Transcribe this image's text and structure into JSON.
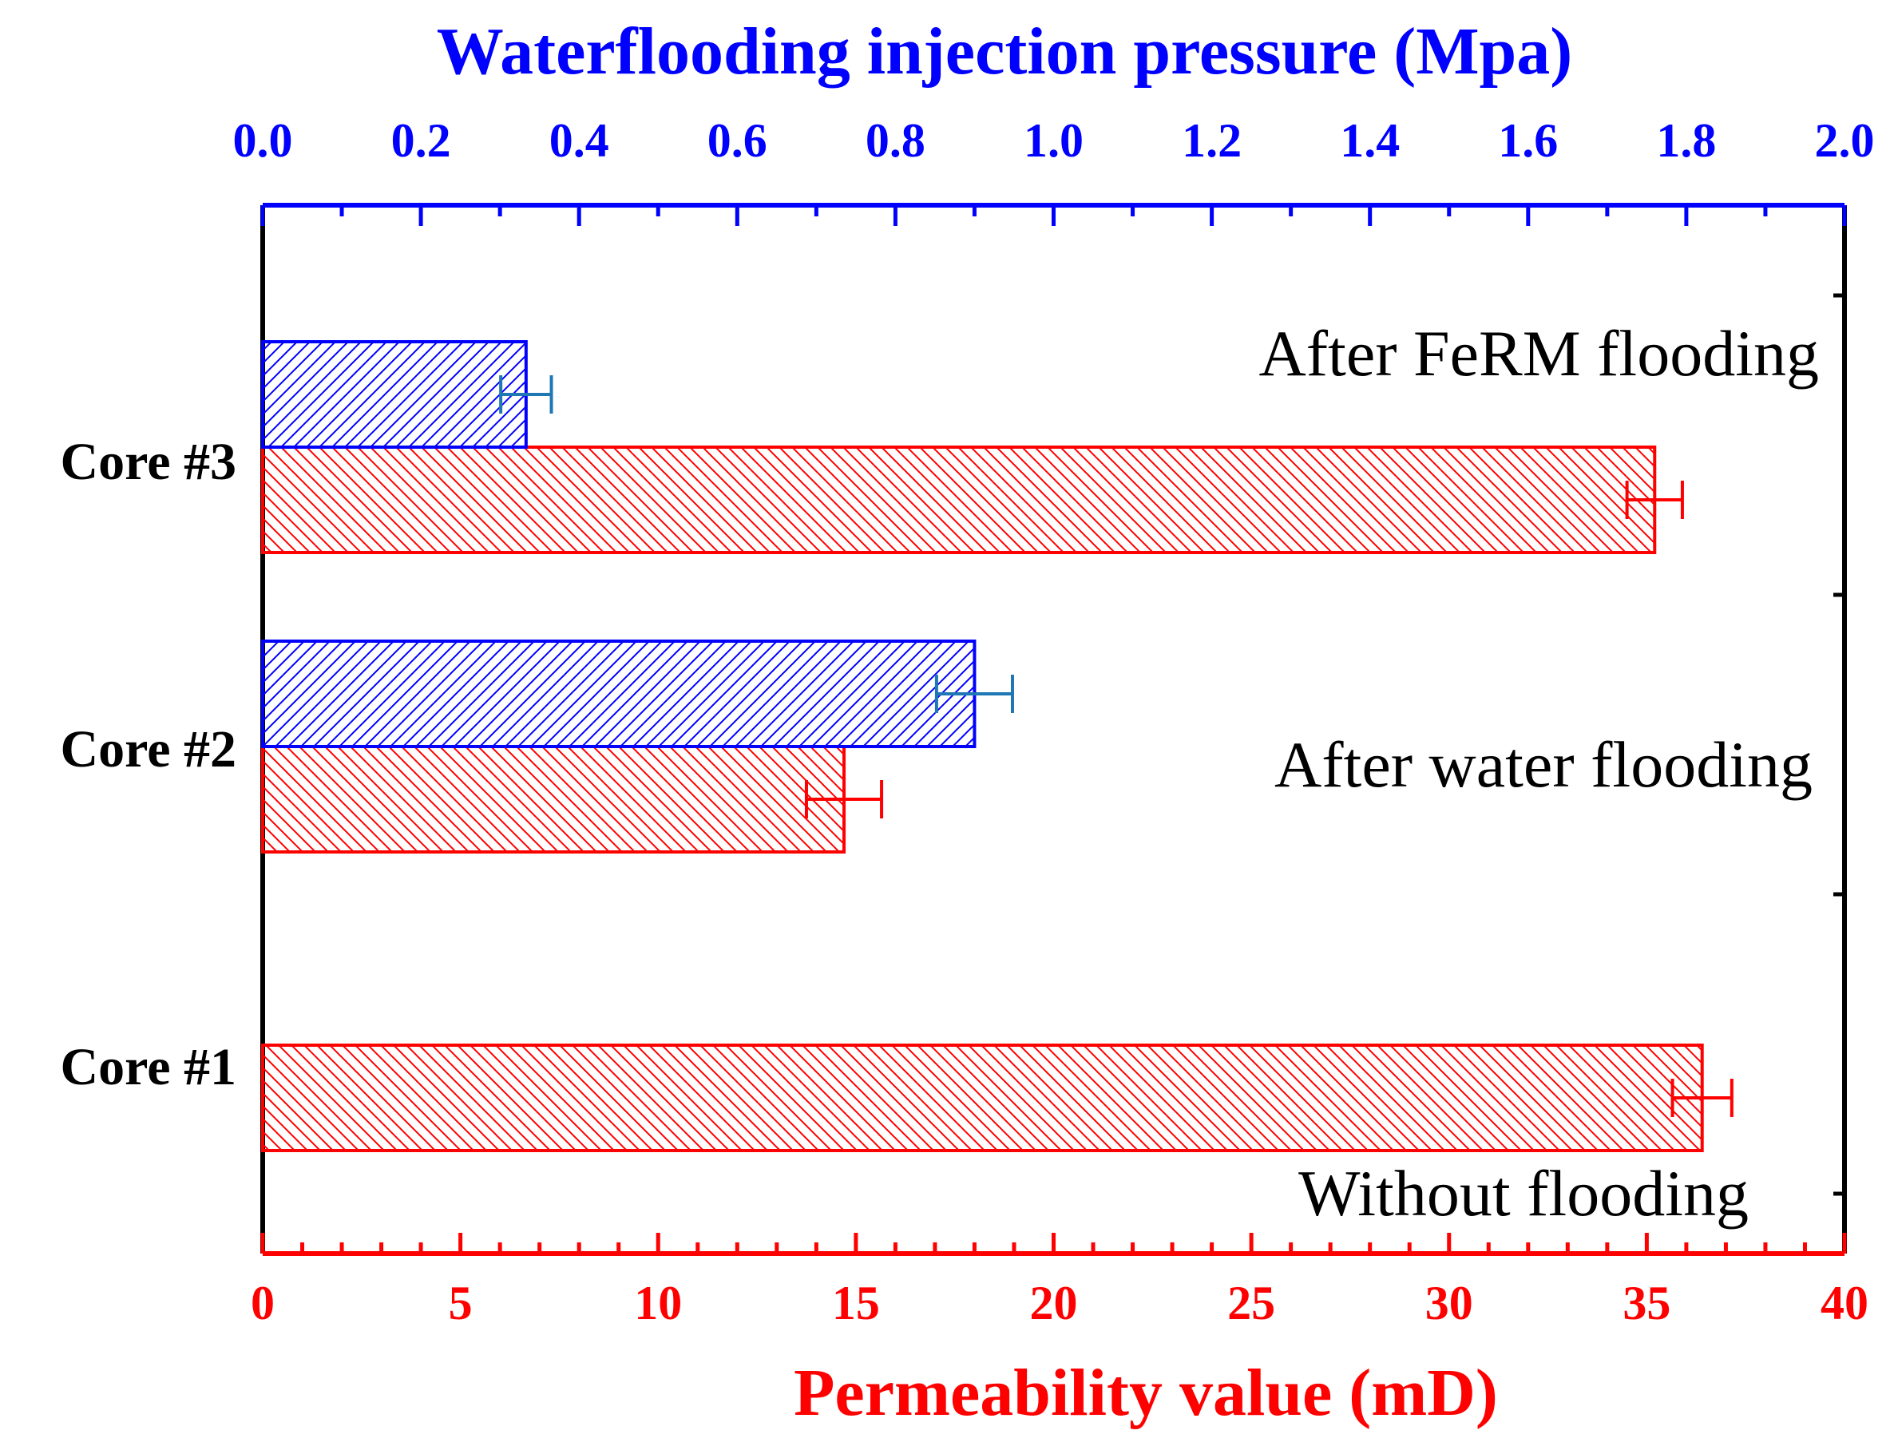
{
  "chart_data": {
    "type": "bar",
    "orientation": "horizontal",
    "categories": [
      "Core #1",
      "Core #2",
      "Core #3"
    ],
    "top_axis": {
      "label": "Waterflooding injection pressure (Mpa)",
      "range": [
        0.0,
        2.0
      ],
      "ticks": [
        "0.0",
        "0.2",
        "0.4",
        "0.6",
        "0.8",
        "1.0",
        "1.2",
        "1.4",
        "1.6",
        "1.8",
        "2.0"
      ],
      "color": "#0000FF"
    },
    "bottom_axis": {
      "label": "Permeability value (mD)",
      "range": [
        0,
        40
      ],
      "ticks": [
        "0",
        "5",
        "10",
        "15",
        "20",
        "25",
        "30",
        "35",
        "40"
      ],
      "color": "#FF0000"
    },
    "series": [
      {
        "axis": "bottom",
        "color": "#FF0000",
        "hatch": "backslash",
        "values": [
          36.4,
          14.7,
          35.2
        ],
        "errors": [
          0.75,
          0.95,
          0.7
        ]
      },
      {
        "axis": "top",
        "color": "#0000FF",
        "error_color": "#1F77B4",
        "hatch": "slash",
        "values": [
          null,
          0.9,
          0.333
        ],
        "errors": [
          null,
          0.048,
          0.032
        ]
      }
    ],
    "annotations": [
      "After FeRM flooding",
      "After water flooding",
      "Without flooding"
    ]
  }
}
